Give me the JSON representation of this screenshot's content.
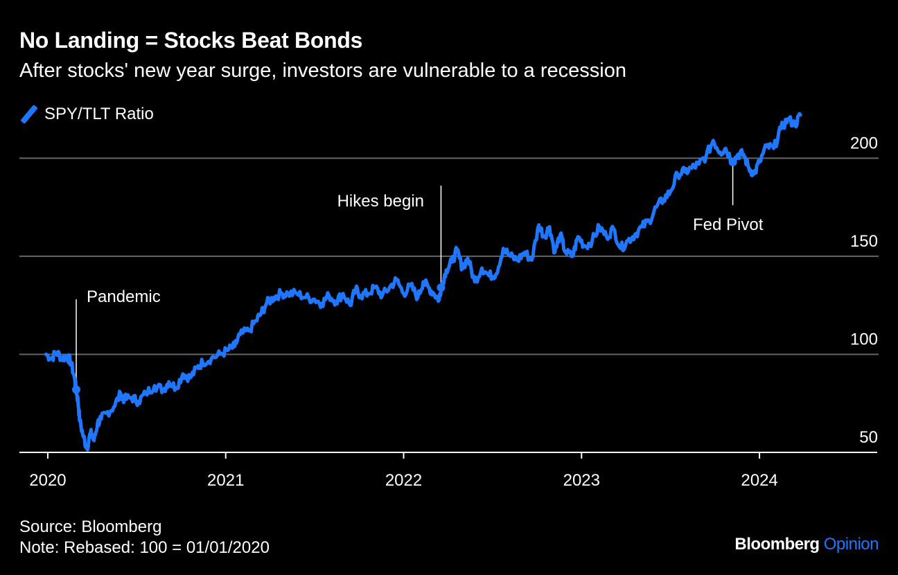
{
  "header": {
    "title": "No Landing = Stocks Beat Bonds",
    "subtitle": "After stocks' new year surge, investors are vulnerable to a recession"
  },
  "footer": {
    "source": "Source: Bloomberg",
    "note": "Note: Rebased: 100 = 01/01/2020",
    "brand_main": "Bloomberg",
    "brand_accent": "Opinion"
  },
  "colors": {
    "line": "#1f77ff",
    "grid": "#666666",
    "background": "#000000"
  },
  "chart_data": {
    "type": "line",
    "title": "No Landing = Stocks Beat Bonds",
    "subtitle": "After stocks' new year surge, investors are vulnerable to a recession",
    "xlabel": "",
    "ylabel": "",
    "xlim": [
      2019.86,
      2024.65
    ],
    "ylim": [
      50,
      210
    ],
    "grid": true,
    "legend_position": "top-left",
    "y_ticks": [
      50,
      100,
      150,
      200
    ],
    "x_ticks": [
      {
        "value": 2020,
        "label": "2020"
      },
      {
        "value": 2021,
        "label": "2021"
      },
      {
        "value": 2022,
        "label": "2022"
      },
      {
        "value": 2023,
        "label": "2023"
      },
      {
        "value": 2024,
        "label": "2024"
      }
    ],
    "annotations": [
      {
        "label": "Pandemic",
        "x": 2020.16,
        "y": 82
      },
      {
        "label": "Hikes begin",
        "x": 2022.21,
        "y": 134
      },
      {
        "label": "Fed Pivot",
        "x": 2023.85,
        "y": 198
      }
    ],
    "series": [
      {
        "name": "SPY/TLT Ratio",
        "x": [
          2019.99,
          2020.02,
          2020.05,
          2020.08,
          2020.11,
          2020.13,
          2020.15,
          2020.16,
          2020.17,
          2020.18,
          2020.2,
          2020.22,
          2020.24,
          2020.26,
          2020.28,
          2020.3,
          2020.33,
          2020.37,
          2020.41,
          2020.43,
          2020.47,
          2020.51,
          2020.55,
          2020.6,
          2020.65,
          2020.68,
          2020.72,
          2020.76,
          2020.8,
          2020.84,
          2020.87,
          2020.92,
          2020.97,
          2021.01,
          2021.05,
          2021.08,
          2021.13,
          2021.17,
          2021.2,
          2021.23,
          2021.27,
          2021.31,
          2021.35,
          2021.4,
          2021.45,
          2021.5,
          2021.54,
          2021.58,
          2021.62,
          2021.66,
          2021.7,
          2021.73,
          2021.76,
          2021.8,
          2021.84,
          2021.88,
          2021.92,
          2021.96,
          2022.0,
          2022.04,
          2022.08,
          2022.11,
          2022.14,
          2022.17,
          2022.2,
          2022.21,
          2022.24,
          2022.27,
          2022.3,
          2022.33,
          2022.36,
          2022.4,
          2022.44,
          2022.48,
          2022.52,
          2022.56,
          2022.6,
          2022.64,
          2022.68,
          2022.72,
          2022.76,
          2022.79,
          2022.82,
          2022.85,
          2022.88,
          2022.91,
          2022.95,
          2022.98,
          2023.02,
          2023.06,
          2023.1,
          2023.14,
          2023.18,
          2023.22,
          2023.26,
          2023.3,
          2023.34,
          2023.38,
          2023.42,
          2023.46,
          2023.5,
          2023.54,
          2023.58,
          2023.62,
          2023.66,
          2023.7,
          2023.74,
          2023.78,
          2023.81,
          2023.85,
          2023.88,
          2023.91,
          2023.94,
          2023.97,
          2024.0,
          2024.04,
          2024.08,
          2024.12,
          2024.16,
          2024.2,
          2024.23
        ],
        "values": [
          100,
          98,
          101,
          98,
          99,
          96,
          88,
          82,
          76,
          66,
          58,
          52,
          60,
          56,
          65,
          67,
          70,
          73,
          80,
          77,
          78,
          76,
          80,
          84,
          82,
          86,
          83,
          90,
          88,
          93,
          96,
          98,
          100,
          102,
          104,
          110,
          112,
          117,
          121,
          126,
          129,
          131,
          131,
          131,
          129,
          128,
          126,
          130,
          127,
          131,
          125,
          133,
          130,
          131,
          134,
          130,
          134,
          138,
          131,
          135,
          129,
          137,
          134,
          131,
          128,
          134,
          143,
          147,
          153,
          144,
          149,
          137,
          144,
          140,
          141,
          154,
          150,
          148,
          152,
          148,
          166,
          160,
          165,
          152,
          161,
          152,
          150,
          160,
          155,
          158,
          165,
          160,
          164,
          154,
          158,
          161,
          165,
          168,
          175,
          179,
          183,
          192,
          193,
          195,
          197,
          201,
          209,
          203,
          205,
          198,
          202,
          202,
          195,
          192,
          198,
          206,
          205,
          215,
          220,
          217,
          222
        ]
      }
    ]
  }
}
